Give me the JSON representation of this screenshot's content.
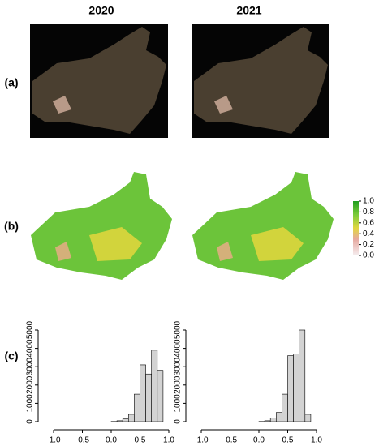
{
  "columns": [
    "2020",
    "2021"
  ],
  "row_labels": [
    "(a)",
    "(b)",
    "(c)"
  ],
  "colorbar": {
    "ticks": [
      {
        "value": 0.0,
        "label": "0.0"
      },
      0.2,
      0.4,
      0.6,
      0.8,
      {
        "value": 1.0,
        "label": "1.0"
      }
    ],
    "lim": [
      0,
      1
    ]
  },
  "chart_data": [
    {
      "type": "histogram",
      "color": "#d3d3d3",
      "bins": [
        0,
        0.1,
        0.2,
        0.3,
        0.4,
        0.5,
        0.6,
        0.7,
        0.8,
        0.9
      ],
      "values": [
        10,
        50,
        150,
        400,
        1500,
        3100,
        2600,
        3900,
        2800
      ],
      "xlim": [
        -1,
        1
      ],
      "xticks": [
        {
          "value": -1.0,
          "label": "-1.0"
        },
        -0.5,
        {
          "value": 0.0,
          "label": "0.0"
        },
        0.5,
        {
          "value": 1.0,
          "label": "1.0"
        }
      ],
      "ylim": [
        0,
        5000
      ],
      "yticks": [
        0,
        1000,
        2000,
        3000,
        4000,
        5000
      ]
    },
    {
      "type": "histogram",
      "color": "#d3d3d3",
      "bins": [
        0,
        0.1,
        0.2,
        0.3,
        0.4,
        0.5,
        0.6,
        0.7,
        0.8,
        0.9
      ],
      "values": [
        10,
        50,
        200,
        500,
        1500,
        3600,
        3700,
        5000,
        400
      ],
      "xlim": [
        -1,
        1
      ],
      "xticks": [
        {
          "value": -1.0,
          "label": "-1.0"
        },
        -0.5,
        {
          "value": 0.0,
          "label": "0.0"
        },
        0.5,
        {
          "value": 1.0,
          "label": "1.0"
        }
      ],
      "ylim": [
        0,
        5000
      ],
      "yticks": [
        0,
        1000,
        2000,
        3000,
        4000,
        5000
      ]
    }
  ]
}
